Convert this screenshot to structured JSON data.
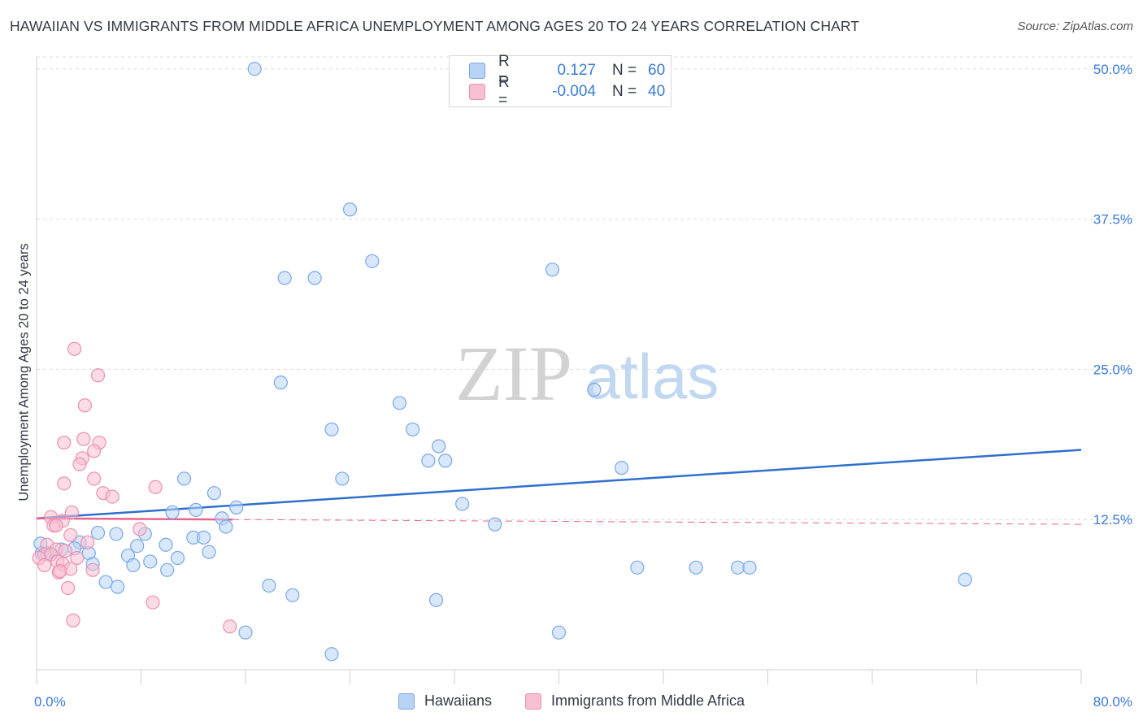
{
  "title": "HAWAIIAN VS IMMIGRANTS FROM MIDDLE AFRICA UNEMPLOYMENT AMONG AGES 20 TO 24 YEARS CORRELATION CHART",
  "source": "Source: ZipAtlas.com",
  "watermark": {
    "zip": "ZIP",
    "atlas": "atlas"
  },
  "legend_top": [
    {
      "r_label": "R =",
      "r_value": "0.127",
      "n_label": "N =",
      "n_value": "60"
    },
    {
      "r_label": "R =",
      "r_value": "-0.004",
      "n_label": "N =",
      "n_value": "40"
    }
  ],
  "colors": {
    "blue_fill": "#b8d3f5",
    "blue_stroke": "#7aa8e6",
    "blue_line": "#2f6fce",
    "pink_fill": "#f7c0d2",
    "pink_stroke": "#ec8fb0",
    "pink_line": "#e8638f",
    "grid": "#dcdcdc",
    "tick_text": "#3a7bd5"
  },
  "chart_data": {
    "type": "scatter",
    "title": "HAWAIIAN VS IMMIGRANTS FROM MIDDLE AFRICA UNEMPLOYMENT AMONG AGES 20 TO 24 YEARS CORRELATION CHART",
    "xlabel": "",
    "ylabel": "Unemployment Among Ages 20 to 24 years",
    "xlim": [
      0,
      80
    ],
    "ylim": [
      0,
      51
    ],
    "x_tick_labels": [
      "0.0%",
      "80.0%"
    ],
    "y_ticks": [
      12.5,
      25.0,
      37.5,
      50.0
    ],
    "y_tick_labels": [
      "12.5%",
      "25.0%",
      "37.5%",
      "50.0%"
    ],
    "legend": [
      "Hawaiians",
      "Immigrants from Middle Africa"
    ],
    "series": [
      {
        "name": "Hawaiians",
        "r": 0.127,
        "n": 60,
        "trend": {
          "x": [
            0,
            80
          ],
          "y": [
            12.6,
            18.3
          ]
        },
        "points": [
          [
            16.7,
            50.0
          ],
          [
            24.0,
            38.3
          ],
          [
            25.7,
            34.0
          ],
          [
            19.0,
            32.6
          ],
          [
            21.3,
            32.6
          ],
          [
            39.5,
            33.3
          ],
          [
            18.7,
            23.9
          ],
          [
            42.7,
            23.3
          ],
          [
            27.8,
            22.2
          ],
          [
            22.6,
            20.0
          ],
          [
            28.8,
            20.0
          ],
          [
            30.8,
            18.6
          ],
          [
            30.0,
            17.4
          ],
          [
            31.3,
            17.4
          ],
          [
            44.8,
            16.8
          ],
          [
            11.3,
            15.9
          ],
          [
            23.4,
            15.9
          ],
          [
            13.6,
            14.7
          ],
          [
            32.6,
            13.8
          ],
          [
            15.3,
            13.5
          ],
          [
            12.2,
            13.3
          ],
          [
            10.4,
            13.1
          ],
          [
            35.1,
            12.1
          ],
          [
            14.2,
            12.6
          ],
          [
            14.5,
            11.9
          ],
          [
            4.7,
            11.4
          ],
          [
            6.1,
            11.3
          ],
          [
            8.3,
            11.3
          ],
          [
            12.0,
            11.0
          ],
          [
            12.8,
            11.0
          ],
          [
            3.3,
            10.6
          ],
          [
            7.7,
            10.3
          ],
          [
            9.9,
            10.4
          ],
          [
            2.9,
            10.1
          ],
          [
            1.9,
            10.0
          ],
          [
            13.2,
            9.8
          ],
          [
            4.0,
            9.7
          ],
          [
            0.4,
            9.7
          ],
          [
            0.8,
            9.7
          ],
          [
            1.1,
            9.6
          ],
          [
            7.0,
            9.5
          ],
          [
            10.8,
            9.3
          ],
          [
            8.7,
            9.0
          ],
          [
            7.4,
            8.7
          ],
          [
            4.3,
            8.8
          ],
          [
            10.0,
            8.3
          ],
          [
            46.0,
            8.5
          ],
          [
            50.5,
            8.5
          ],
          [
            53.7,
            8.5
          ],
          [
            54.6,
            8.5
          ],
          [
            71.1,
            7.5
          ],
          [
            5.3,
            7.3
          ],
          [
            6.2,
            6.9
          ],
          [
            17.8,
            7.0
          ],
          [
            19.6,
            6.2
          ],
          [
            30.6,
            5.8
          ],
          [
            16.0,
            3.1
          ],
          [
            40.0,
            3.1
          ],
          [
            22.6,
            1.3
          ],
          [
            0.3,
            10.5
          ]
        ]
      },
      {
        "name": "Immigrants from Middle Africa",
        "r": -0.004,
        "n": 40,
        "trend": {
          "x": [
            0,
            15
          ],
          "y": [
            12.6,
            12.5
          ]
        },
        "dashed_trend": {
          "x": [
            15,
            80
          ],
          "y": [
            12.5,
            12.1
          ]
        },
        "points": [
          [
            2.9,
            26.7
          ],
          [
            4.7,
            24.5
          ],
          [
            3.7,
            22.0
          ],
          [
            3.6,
            19.2
          ],
          [
            4.8,
            18.9
          ],
          [
            2.1,
            18.9
          ],
          [
            4.4,
            18.2
          ],
          [
            3.5,
            17.6
          ],
          [
            3.3,
            17.1
          ],
          [
            4.4,
            15.9
          ],
          [
            2.1,
            15.5
          ],
          [
            9.1,
            15.2
          ],
          [
            5.1,
            14.7
          ],
          [
            5.8,
            14.4
          ],
          [
            2.7,
            13.1
          ],
          [
            1.1,
            12.7
          ],
          [
            2.0,
            12.4
          ],
          [
            1.3,
            12.0
          ],
          [
            1.5,
            12.0
          ],
          [
            7.9,
            11.7
          ],
          [
            2.6,
            11.2
          ],
          [
            3.9,
            10.6
          ],
          [
            0.8,
            10.4
          ],
          [
            1.5,
            10.0
          ],
          [
            2.2,
            9.9
          ],
          [
            0.6,
            9.6
          ],
          [
            1.1,
            9.6
          ],
          [
            0.2,
            9.3
          ],
          [
            3.1,
            9.3
          ],
          [
            1.6,
            9.0
          ],
          [
            2.0,
            8.8
          ],
          [
            0.6,
            8.7
          ],
          [
            2.6,
            8.4
          ],
          [
            4.3,
            8.3
          ],
          [
            1.7,
            8.1
          ],
          [
            1.8,
            8.2
          ],
          [
            2.4,
            6.8
          ],
          [
            8.9,
            5.6
          ],
          [
            2.8,
            4.1
          ],
          [
            14.8,
            3.6
          ]
        ]
      }
    ]
  }
}
